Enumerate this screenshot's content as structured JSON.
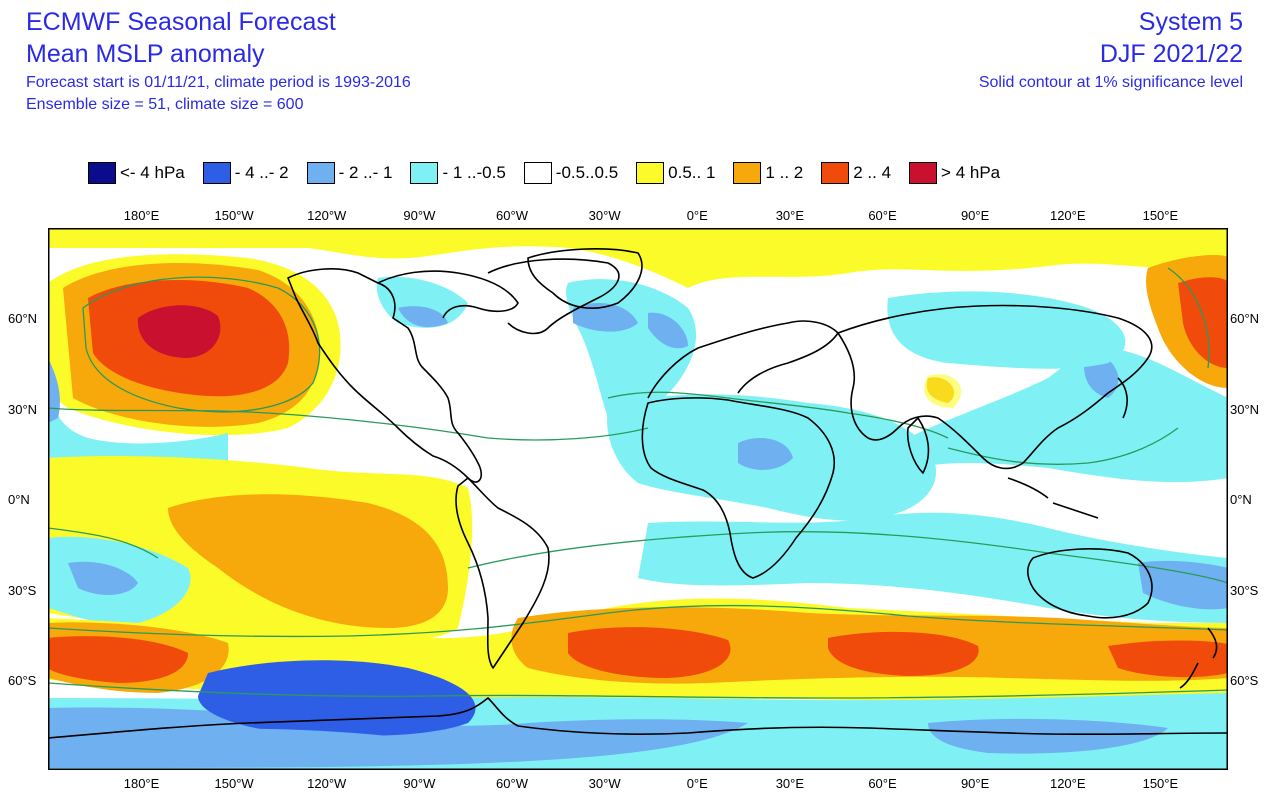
{
  "header": {
    "title_line1": "ECMWF Seasonal Forecast",
    "title_line2": "Mean MSLP anomaly",
    "info_line1": "Forecast start is 01/11/21, climate period is 1993-2016",
    "info_line2": "Ensemble size = 51, climate size = 600",
    "system": "System 5",
    "period": "DJF 2021/22",
    "significance": "Solid contour at 1% significance level"
  },
  "legend": [
    {
      "label": "<- 4 hPa",
      "color": "#0b0b8e"
    },
    {
      "label": "- 4 ..- 2",
      "color": "#2f5ee6"
    },
    {
      "label": "- 2 ..- 1",
      "color": "#6fb0f0"
    },
    {
      "label": "- 1 ..-0.5",
      "color": "#7ff1f4"
    },
    {
      "label": "-0.5..0.5",
      "color": "#ffffff"
    },
    {
      "label": "0.5.. 1",
      "color": "#fbfb2a"
    },
    {
      "label": "1 .. 2",
      "color": "#f7a80b"
    },
    {
      "label": "2 .. 4",
      "color": "#f14b0b"
    },
    {
      "label": "> 4 hPa",
      "color": "#c9102e"
    }
  ],
  "axes": {
    "lon_ticks": [
      "180°E",
      "150°W",
      "120°W",
      "90°W",
      "60°W",
      "30°W",
      "0°E",
      "30°E",
      "60°E",
      "90°E",
      "120°E",
      "150°E"
    ],
    "lat_ticks": [
      "60°N",
      "30°N",
      "0°N",
      "30°S",
      "60°S"
    ]
  },
  "colors": {
    "text": "#2a2ae6",
    "coast": "#000000",
    "contour": "#2a9a5a"
  }
}
